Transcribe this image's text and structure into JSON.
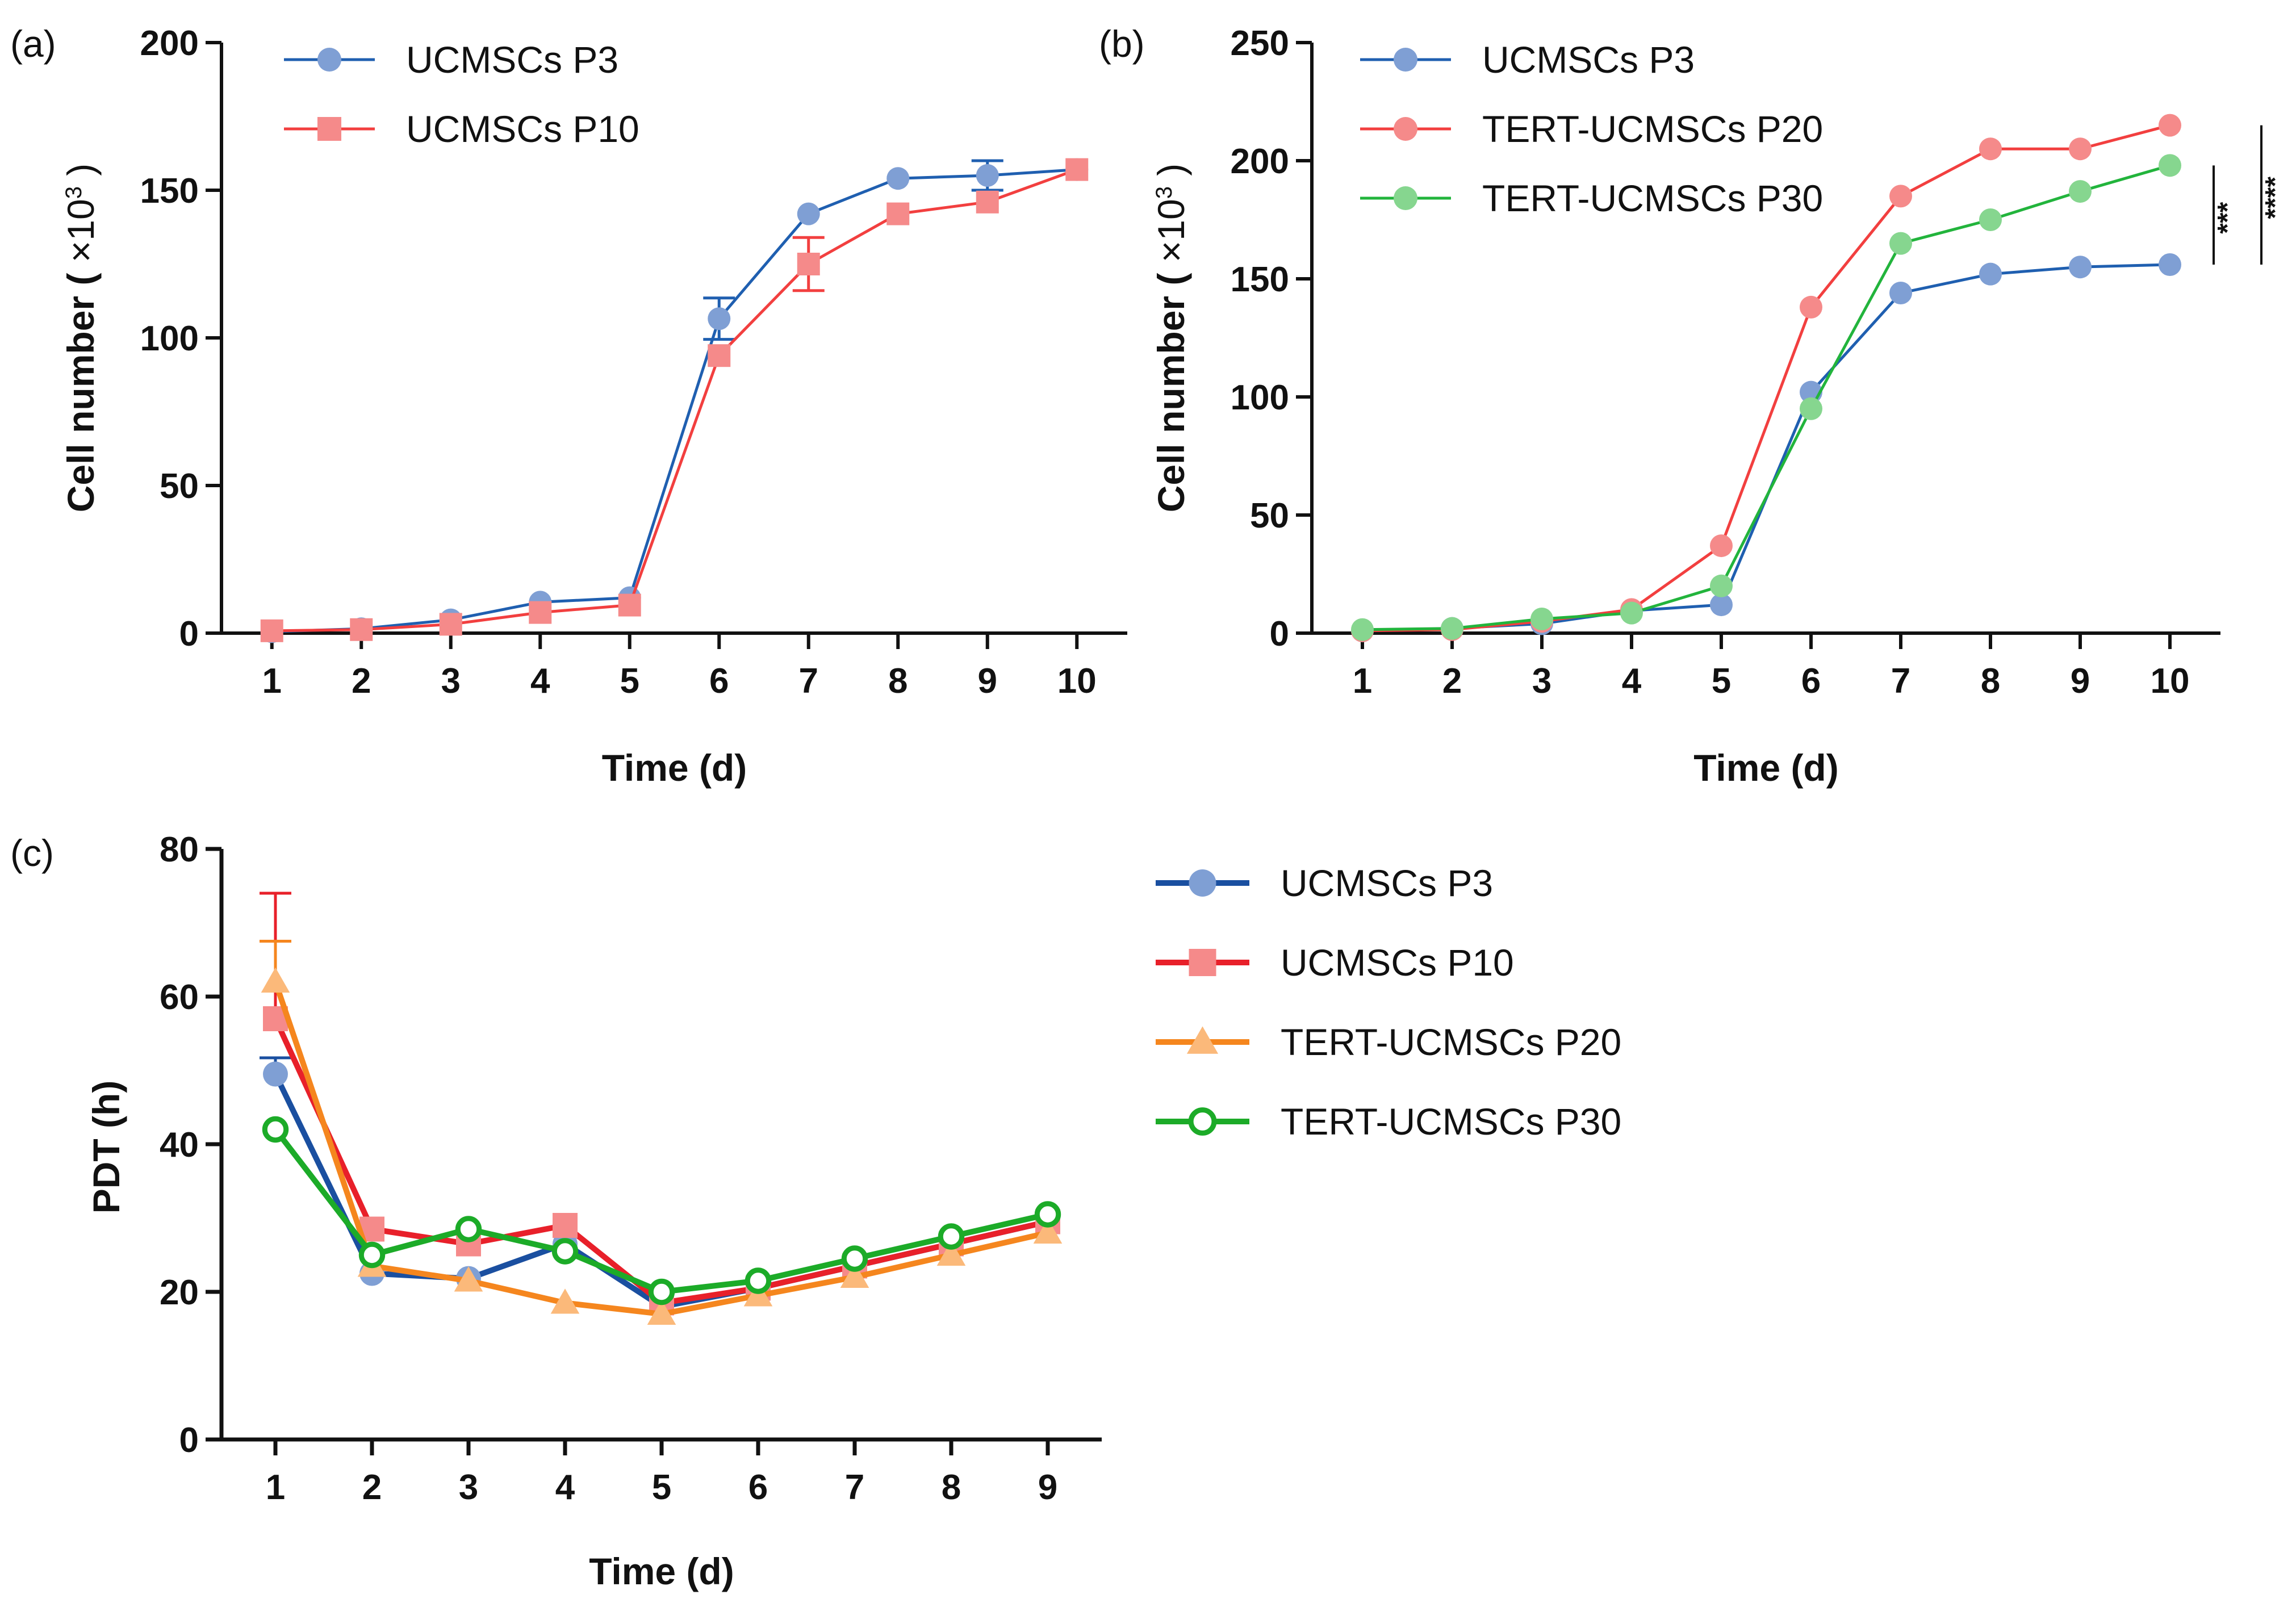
{
  "colors": {
    "blue_light": "#1f5fb0",
    "blue_marker": "#7f9fd4",
    "red_light": "#f23f3f",
    "red_marker": "#f58a8a",
    "green_light": "#22b43c",
    "green_marker": "#86d68f",
    "blue_dark": "#1a4fa0",
    "red_dark": "#e8202a",
    "orange": "#f5861e",
    "orange_marker": "#fbb97a",
    "green_dark": "#1cab28",
    "axis": "#111111"
  },
  "chart_data": [
    {
      "id": "a",
      "panel_label": "(a)",
      "type": "line",
      "title": "",
      "xlabel": "Time  (d)",
      "ylabel": "Cell number ( ×10³ )",
      "ylabel_parts": [
        "Cell number ( ",
        "×10",
        "3",
        " )"
      ],
      "x": [
        1,
        2,
        3,
        4,
        5,
        6,
        7,
        8,
        9,
        10
      ],
      "xlim": [
        0.5,
        10.5
      ],
      "ylim": [
        0,
        200
      ],
      "yticks": [
        0,
        50,
        100,
        150,
        200
      ],
      "legend_position": "top-left",
      "series": [
        {
          "name": "UCMSCs P3",
          "color_key": "blue_light",
          "marker_color_key": "blue_marker",
          "marker": "circle",
          "values": [
            0.5,
            1.5,
            4.5,
            10.5,
            12,
            106.5,
            142,
            154,
            155,
            157
          ],
          "errors": [
            0,
            0,
            0,
            0,
            0,
            7,
            0,
            0,
            5,
            0
          ]
        },
        {
          "name": "UCMSCs P10",
          "color_key": "red_light",
          "marker_color_key": "red_marker",
          "marker": "square",
          "values": [
            0.8,
            1.2,
            3,
            7,
            9.5,
            94,
            125,
            142,
            146,
            157
          ],
          "errors": [
            0,
            0,
            0,
            0,
            0,
            0,
            9,
            0,
            0,
            0
          ]
        }
      ]
    },
    {
      "id": "b",
      "panel_label": "(b)",
      "type": "line",
      "title": "",
      "xlabel": "Time  (d)",
      "ylabel": "Cell number ( ×10³ )",
      "ylabel_parts": [
        "Cell number ( ",
        "×10",
        "3",
        " )"
      ],
      "x": [
        1,
        2,
        3,
        4,
        5,
        6,
        7,
        8,
        9,
        10
      ],
      "xlim": [
        0.5,
        10.5
      ],
      "ylim": [
        0,
        250
      ],
      "yticks": [
        0,
        50,
        100,
        150,
        200,
        250
      ],
      "legend_position": "top-left",
      "series": [
        {
          "name": "UCMSCs P3",
          "color_key": "blue_light",
          "marker_color_key": "blue_marker",
          "marker": "circle",
          "values": [
            1,
            2,
            4,
            9.5,
            12,
            102,
            144,
            152,
            155,
            156
          ]
        },
        {
          "name": "TERT-UCMSCs P20",
          "color_key": "red_light",
          "marker_color_key": "red_marker",
          "marker": "circle",
          "values": [
            1,
            1.5,
            5,
            10,
            37,
            138,
            185,
            205,
            205,
            215
          ]
        },
        {
          "name": "TERT-UCMSCs P30",
          "color_key": "green_light",
          "marker_color_key": "green_marker",
          "marker": "circle",
          "values": [
            1.5,
            2,
            6,
            8.5,
            20,
            95,
            165,
            175,
            187,
            198
          ]
        }
      ],
      "significance": [
        {
          "label": "***",
          "from": 156,
          "to": 198
        },
        {
          "label": "****",
          "from": 156,
          "to": 215
        }
      ]
    },
    {
      "id": "c",
      "panel_label": "(c)",
      "type": "line",
      "title": "",
      "xlabel": "Time  (d)",
      "ylabel": "PDT (h)",
      "x": [
        1,
        2,
        3,
        4,
        5,
        6,
        7,
        8,
        9
      ],
      "xlim": [
        0.5,
        9.5
      ],
      "ylim": [
        0,
        80
      ],
      "yticks": [
        0,
        20,
        40,
        60,
        80
      ],
      "legend_position": "right",
      "series": [
        {
          "name": "UCMSCs P3",
          "color_key": "blue_dark",
          "marker_color_key": "blue_marker",
          "marker": "circle",
          "values": [
            49.5,
            22.5,
            21.8,
            26.5,
            18,
            20.5,
            23.5,
            26.5,
            29.5
          ],
          "errors": [
            2.2,
            0,
            0,
            0,
            0,
            0,
            0,
            0,
            0
          ]
        },
        {
          "name": "UCMSCs P10",
          "color_key": "red_dark",
          "marker_color_key": "red_marker",
          "marker": "square",
          "values": [
            57,
            28.5,
            26.5,
            29,
            18.5,
            20.5,
            23.5,
            26.5,
            29.5
          ],
          "errors": [
            17,
            0,
            0,
            0,
            0,
            0,
            0,
            0,
            0
          ]
        },
        {
          "name": "TERT-UCMSCs P20",
          "color_key": "orange",
          "marker_color_key": "orange_marker",
          "marker": "triangle",
          "values": [
            62,
            23.5,
            21.5,
            18.5,
            17,
            19.5,
            22,
            25,
            28
          ],
          "errors": [
            5.5,
            0,
            0,
            0,
            0,
            0,
            0,
            0,
            0
          ]
        },
        {
          "name": "TERT-UCMSCs P30",
          "color_key": "green_dark",
          "marker_color_key": "green_dark",
          "marker": "open-circle",
          "values": [
            42,
            25,
            28.5,
            25.5,
            20,
            21.5,
            24.5,
            27.5,
            30.5
          ],
          "errors": [
            0,
            0,
            0,
            0,
            0,
            0,
            0,
            0,
            0
          ]
        }
      ]
    }
  ]
}
